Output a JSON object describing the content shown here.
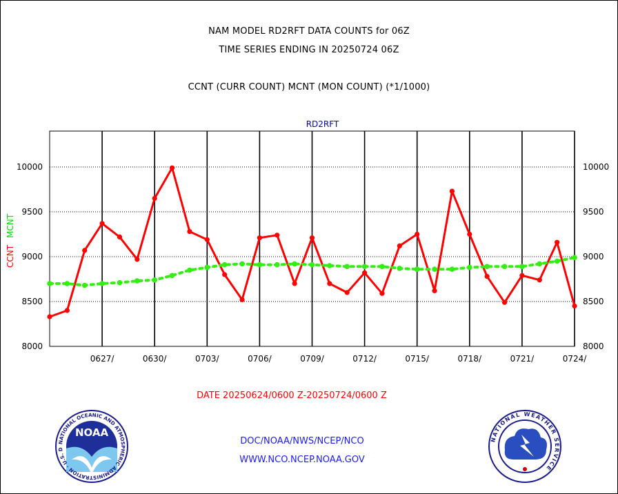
{
  "header": {
    "line1": "NAM MODEL RD2RFT DATA COUNTS for 06Z",
    "line2": "TIME SERIES ENDING IN 20250724 06Z",
    "line3": "CCNT (CURR COUNT) MCNT (MON COUNT) (*1/1000)"
  },
  "footer": {
    "date_range": "DATE 20250624/0600 Z-20250724/0600 Z",
    "doc_path": "DOC/NOAA/NWS/NCEP/NCO",
    "website": "WWW.NCO.NCEP.NOAA.GOV"
  },
  "logos": {
    "left": {
      "name": "noaa-logo",
      "text": "NOAA",
      "ring_text": "NATIONAL OCEANIC AND ATMOSPHERIC ADMINISTRATION · U.S. DEPARTMENT OF COMMERCE"
    },
    "right": {
      "name": "nws-logo",
      "ring_text": "NATIONAL WEATHER SERVICE"
    }
  },
  "chart_data": {
    "type": "line",
    "title": "RD2RFT",
    "ylabel_parts": [
      {
        "text": "CCNT",
        "color": "#ff0000"
      },
      {
        "text": "MCNT",
        "color": "#00dd00"
      }
    ],
    "ylim": [
      8000,
      10000
    ],
    "yticks": [
      8000,
      8500,
      9000,
      9500,
      10000
    ],
    "y_tick_labels": [
      "8000",
      "8500",
      "9000",
      "9500",
      "10000"
    ],
    "x_range": [
      0,
      30
    ],
    "x_tick_positions": [
      3,
      6,
      9,
      12,
      15,
      18,
      21,
      24,
      27,
      30
    ],
    "x_tick_labels": [
      "0627/",
      "0630/",
      "0703/",
      "0706/",
      "0709/",
      "0712/",
      "0715/",
      "0718/",
      "0721/",
      "0724/"
    ],
    "grid": true,
    "colors": {
      "ccnt": "#ff0000",
      "mcnt": "#33ee11",
      "title": "#0000cc"
    },
    "series": [
      {
        "name": "CCNT",
        "color": "#ff0000",
        "x": [
          0,
          1,
          2,
          3,
          4,
          5,
          6,
          7,
          8,
          9,
          10,
          11,
          12,
          13,
          14,
          15,
          16,
          17,
          18,
          19,
          20,
          21,
          22,
          23,
          24,
          25,
          26,
          27,
          28,
          29,
          30
        ],
        "values": [
          8330,
          8400,
          9070,
          9370,
          9220,
          8970,
          9650,
          9990,
          9280,
          9190,
          8800,
          8520,
          9210,
          9240,
          8700,
          9210,
          8700,
          8600,
          8820,
          8590,
          9120,
          9250,
          8620,
          9730,
          9250,
          8780,
          8490,
          8790,
          8740,
          9160,
          8450
        ]
      },
      {
        "name": "MCNT",
        "color": "#33ee11",
        "x": [
          0,
          1,
          2,
          3,
          4,
          5,
          6,
          7,
          8,
          9,
          10,
          11,
          12,
          13,
          14,
          15,
          16,
          17,
          18,
          19,
          20,
          21,
          22,
          23,
          24,
          25,
          26,
          27,
          28,
          29,
          30
        ],
        "values": [
          8700,
          8700,
          8680,
          8700,
          8710,
          8730,
          8740,
          8790,
          8850,
          8880,
          8910,
          8920,
          8910,
          8910,
          8920,
          8910,
          8900,
          8890,
          8890,
          8890,
          8870,
          8860,
          8860,
          8860,
          8880,
          8890,
          8890,
          8890,
          8920,
          8950,
          8990
        ]
      }
    ]
  }
}
